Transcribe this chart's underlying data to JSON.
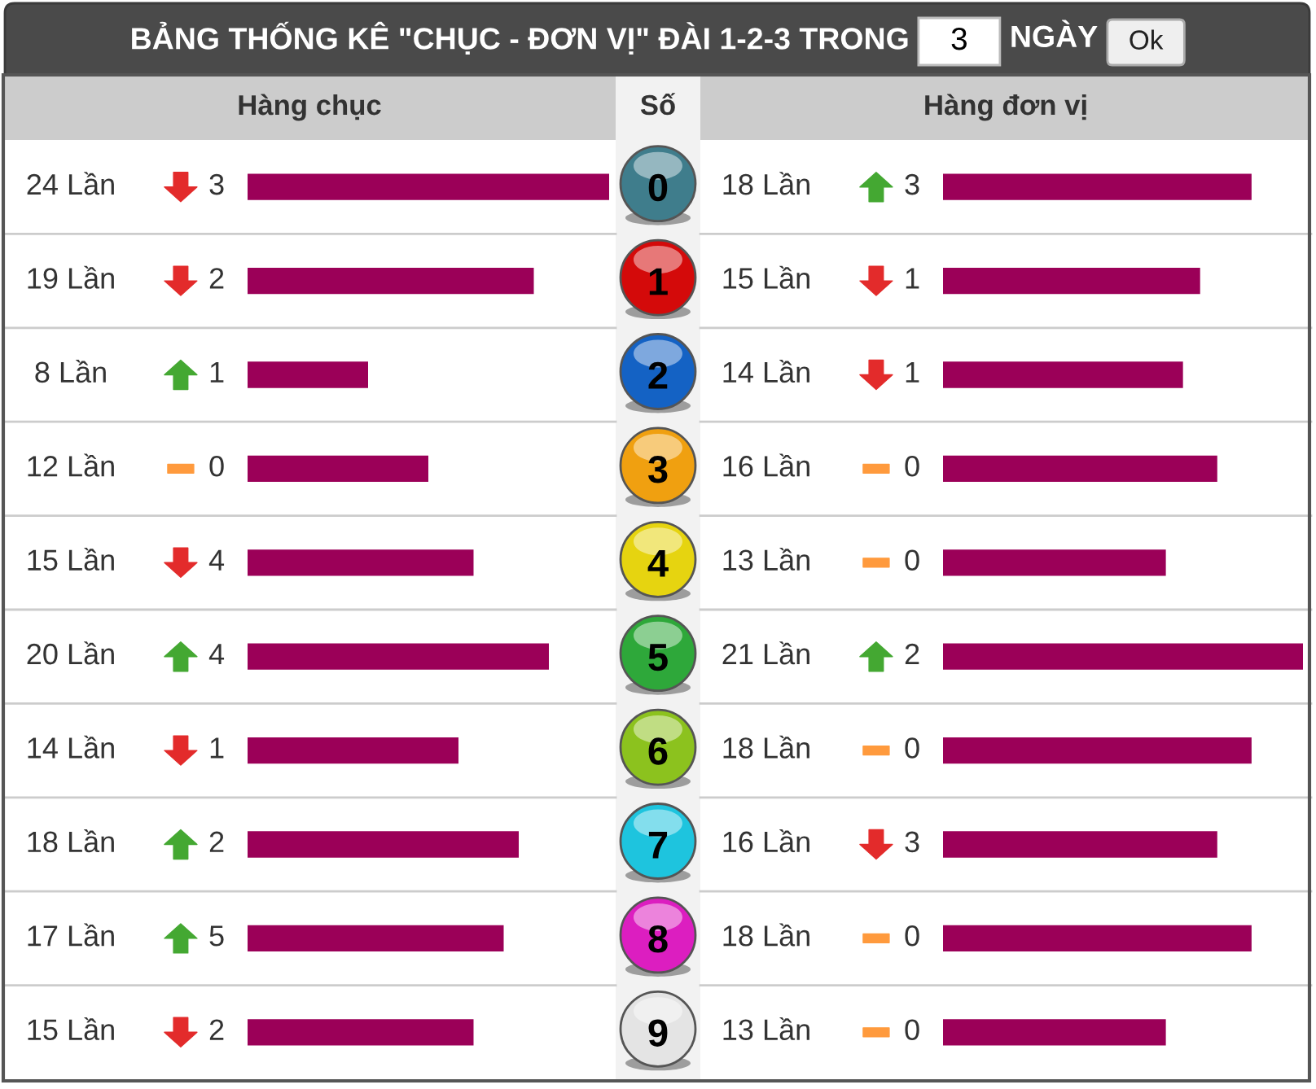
{
  "chart_data": [
    {
      "type": "bar",
      "orientation": "horizontal",
      "title": "BẢNG THỐNG KÊ \"CHỤC - ĐƠN VỊ\" ĐÀI 1-2-3 TRONG",
      "annotations": [
        "3",
        "NGÀY",
        "Ok"
      ],
      "subtitle": "Hàng chục",
      "categories": [
        "0",
        "1",
        "2",
        "3",
        "4",
        "5",
        "6",
        "7",
        "8",
        "9"
      ],
      "tick_labels": false,
      "xlim": [
        0,
        24
      ],
      "color": "#9b0058",
      "values": [
        24,
        19,
        8,
        12,
        15,
        20,
        14,
        18,
        17,
        15
      ],
      "value_labels": [
        "24 Lần",
        "19 Lần",
        "8 Lần",
        "12 Lần",
        "15 Lần",
        "20 Lần",
        "14 Lần",
        "18 Lần",
        "17 Lần",
        "15 Lần"
      ]
    },
    {
      "type": "other",
      "categories": [
        null,
        null,
        null,
        null,
        null,
        null,
        null,
        null,
        null,
        null
      ],
      "values": [
        3,
        2,
        1,
        0,
        4,
        4,
        1,
        2,
        5,
        2
      ],
      "colors": [
        "#e32b2b",
        "#e32b2b",
        "#44a832",
        "#ff9a3d",
        "#e32b2b",
        "#44a832",
        "#e32b2b",
        "#44a832",
        "#44a832",
        "#e32b2b"
      ],
      "value_labels": [
        "3",
        "2",
        "1",
        "0",
        "4",
        "4",
        "1",
        "2",
        "5",
        "2"
      ]
    },
    {
      "type": "bar",
      "orientation": "horizontal",
      "title": "Hàng đơn vị",
      "ylabel": "Số",
      "categories": [
        "0",
        "1",
        "2",
        "3",
        "4",
        "5",
        "6",
        "7",
        "8",
        "9"
      ],
      "tick_labels": "y",
      "xlim": [
        0,
        21
      ],
      "color": "#9b0058",
      "values": [
        18,
        15,
        14,
        16,
        13,
        21,
        18,
        16,
        18,
        13
      ],
      "value_labels": [
        "18 Lần",
        "15 Lần",
        "14 Lần",
        "16 Lần",
        "13 Lần",
        "21 Lần",
        "18 Lần",
        "16 Lần",
        "18 Lần",
        "13 Lần"
      ]
    },
    {
      "type": "other",
      "categories": [
        null,
        null,
        null,
        null,
        null,
        null,
        null,
        null,
        null,
        null
      ],
      "values": [
        3,
        1,
        1,
        0,
        0,
        2,
        0,
        3,
        0,
        0
      ],
      "colors": [
        "#44a832",
        "#e32b2b",
        "#e32b2b",
        "#ff9a3d",
        "#ff9a3d",
        "#44a832",
        "#ff9a3d",
        "#e32b2b",
        "#ff9a3d",
        "#ff9a3d"
      ],
      "value_labels": [
        "3",
        "1",
        "1",
        "0",
        "0",
        "2",
        "0",
        "3",
        "0",
        "0"
      ]
    }
  ]
}
